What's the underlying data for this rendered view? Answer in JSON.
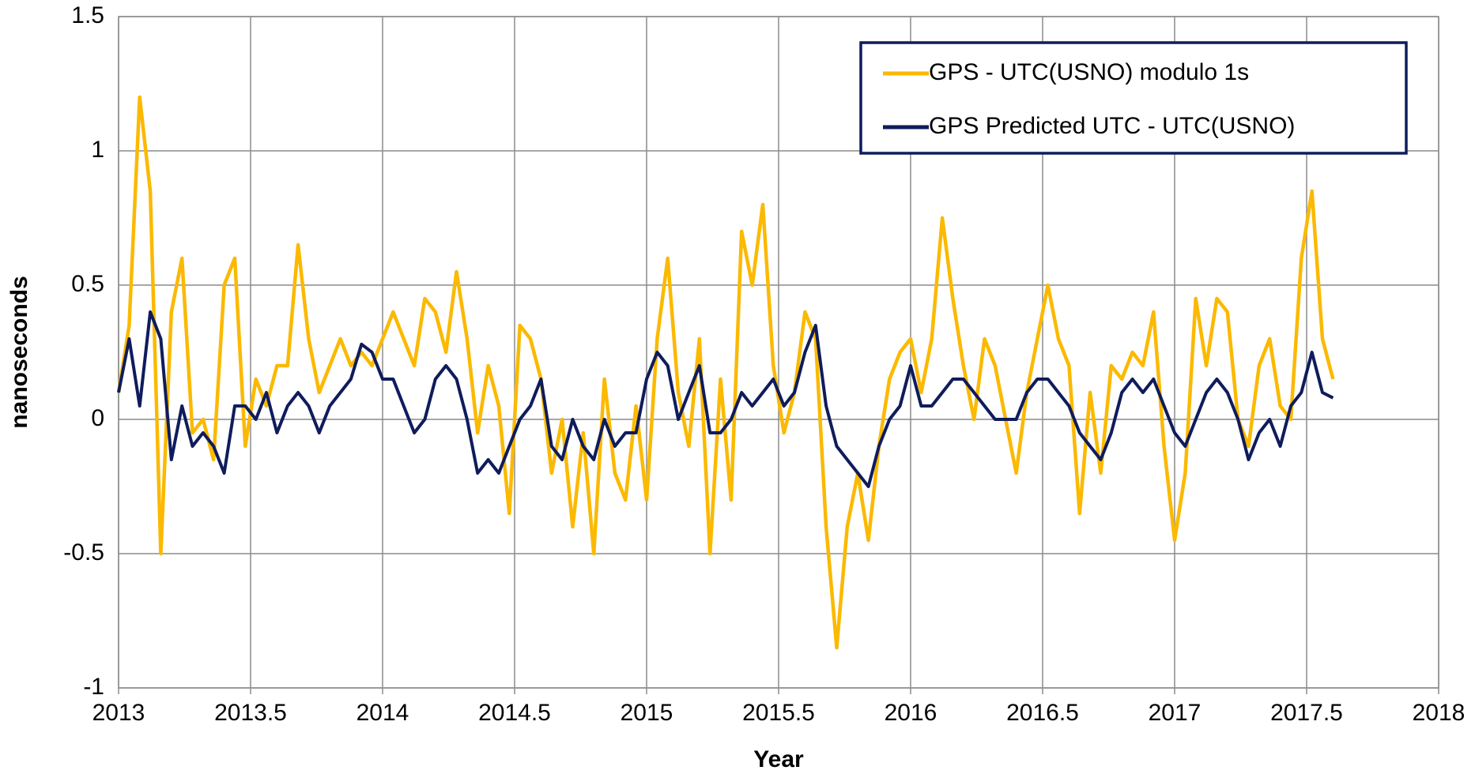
{
  "chart_data": {
    "type": "line",
    "xlabel": "Year",
    "ylabel": "nanoseconds",
    "x": [
      2013.0,
      2013.04,
      2013.08,
      2013.12,
      2013.16,
      2013.2,
      2013.24,
      2013.28,
      2013.32,
      2013.36,
      2013.4,
      2013.44,
      2013.48,
      2013.52,
      2013.56,
      2013.6,
      2013.64,
      2013.68,
      2013.72,
      2013.76,
      2013.8,
      2013.84,
      2013.88,
      2013.92,
      2013.96,
      2014.0,
      2014.04,
      2014.08,
      2014.12,
      2014.16,
      2014.2,
      2014.24,
      2014.28,
      2014.32,
      2014.36,
      2014.4,
      2014.44,
      2014.48,
      2014.52,
      2014.56,
      2014.6,
      2014.64,
      2014.68,
      2014.72,
      2014.76,
      2014.8,
      2014.84,
      2014.88,
      2014.92,
      2014.96,
      2015.0,
      2015.04,
      2015.08,
      2015.12,
      2015.16,
      2015.2,
      2015.24,
      2015.28,
      2015.32,
      2015.36,
      2015.4,
      2015.44,
      2015.48,
      2015.52,
      2015.56,
      2015.6,
      2015.64,
      2015.68,
      2015.72,
      2015.76,
      2015.8,
      2015.84,
      2015.88,
      2015.92,
      2015.96,
      2016.0,
      2016.04,
      2016.08,
      2016.12,
      2016.16,
      2016.2,
      2016.24,
      2016.28,
      2016.32,
      2016.36,
      2016.4,
      2016.44,
      2016.48,
      2016.52,
      2016.56,
      2016.6,
      2016.64,
      2016.68,
      2016.72,
      2016.76,
      2016.8,
      2016.84,
      2016.88,
      2016.92,
      2016.96,
      2017.0,
      2017.04,
      2017.08,
      2017.12,
      2017.16,
      2017.2,
      2017.24,
      2017.28,
      2017.32,
      2017.36,
      2017.4,
      2017.44,
      2017.48,
      2017.52,
      2017.56,
      2017.6
    ],
    "series": [
      {
        "name": "GPS - UTC(USNO) modulo 1s",
        "color": "#fbb900",
        "values": [
          0.1,
          0.35,
          1.2,
          0.85,
          -0.5,
          0.4,
          0.6,
          -0.05,
          0.0,
          -0.15,
          0.5,
          0.6,
          -0.1,
          0.15,
          0.05,
          0.2,
          0.2,
          0.65,
          0.3,
          0.1,
          0.2,
          0.3,
          0.2,
          0.25,
          0.2,
          0.3,
          0.4,
          0.3,
          0.2,
          0.45,
          0.4,
          0.25,
          0.55,
          0.3,
          -0.05,
          0.2,
          0.05,
          -0.35,
          0.35,
          0.3,
          0.15,
          -0.2,
          0.0,
          -0.4,
          -0.05,
          -0.5,
          0.15,
          -0.2,
          -0.3,
          0.05,
          -0.3,
          0.3,
          0.6,
          0.1,
          -0.1,
          0.3,
          -0.5,
          0.15,
          -0.3,
          0.7,
          0.5,
          0.8,
          0.2,
          -0.05,
          0.1,
          0.4,
          0.3,
          -0.4,
          -0.85,
          -0.4,
          -0.2,
          -0.45,
          -0.1,
          0.15,
          0.25,
          0.3,
          0.1,
          0.3,
          0.75,
          0.45,
          0.2,
          0.0,
          0.3,
          0.2,
          0.0,
          -0.2,
          0.1,
          0.3,
          0.5,
          0.3,
          0.2,
          -0.35,
          0.1,
          -0.2,
          0.2,
          0.15,
          0.25,
          0.2,
          0.4,
          -0.1,
          -0.45,
          -0.2,
          0.45,
          0.2,
          0.45,
          0.4,
          0.0,
          -0.1,
          0.2,
          0.3,
          0.05,
          0.0,
          0.6,
          0.85,
          0.3,
          0.15
        ]
      },
      {
        "name": "GPS Predicted UTC - UTC(USNO)",
        "color": "#0f1c5c",
        "values": [
          0.1,
          0.3,
          0.05,
          0.4,
          0.3,
          -0.15,
          0.05,
          -0.1,
          -0.05,
          -0.1,
          -0.2,
          0.05,
          0.05,
          0.0,
          0.1,
          -0.05,
          0.05,
          0.1,
          0.05,
          -0.05,
          0.05,
          0.1,
          0.15,
          0.28,
          0.25,
          0.15,
          0.15,
          0.05,
          -0.05,
          0.0,
          0.15,
          0.2,
          0.15,
          0.0,
          -0.2,
          -0.15,
          -0.2,
          -0.1,
          0.0,
          0.05,
          0.15,
          -0.1,
          -0.15,
          0.0,
          -0.1,
          -0.15,
          0.0,
          -0.1,
          -0.05,
          -0.05,
          0.15,
          0.25,
          0.2,
          0.0,
          0.1,
          0.2,
          -0.05,
          -0.05,
          0.0,
          0.1,
          0.05,
          0.1,
          0.15,
          0.05,
          0.1,
          0.25,
          0.35,
          0.05,
          -0.1,
          -0.15,
          -0.2,
          -0.25,
          -0.1,
          0.0,
          0.05,
          0.2,
          0.05,
          0.05,
          0.1,
          0.15,
          0.15,
          0.1,
          0.05,
          0.0,
          0.0,
          0.0,
          0.1,
          0.15,
          0.15,
          0.1,
          0.05,
          -0.05,
          -0.1,
          -0.15,
          -0.05,
          0.1,
          0.15,
          0.1,
          0.15,
          0.05,
          -0.05,
          -0.1,
          0.0,
          0.1,
          0.15,
          0.1,
          0.0,
          -0.15,
          -0.05,
          0.0,
          -0.1,
          0.05,
          0.1,
          0.25,
          0.1,
          0.08
        ]
      }
    ],
    "xlim": [
      2013,
      2018
    ],
    "xticks": [
      2013,
      2013.5,
      2014,
      2014.5,
      2015,
      2015.5,
      2016,
      2016.5,
      2017,
      2017.5,
      2018
    ],
    "ylim": [
      -1,
      1.5
    ],
    "yticks": [
      -1,
      -0.5,
      0,
      0.5,
      1,
      1.5
    ],
    "grid": true,
    "legend": "upper right"
  }
}
